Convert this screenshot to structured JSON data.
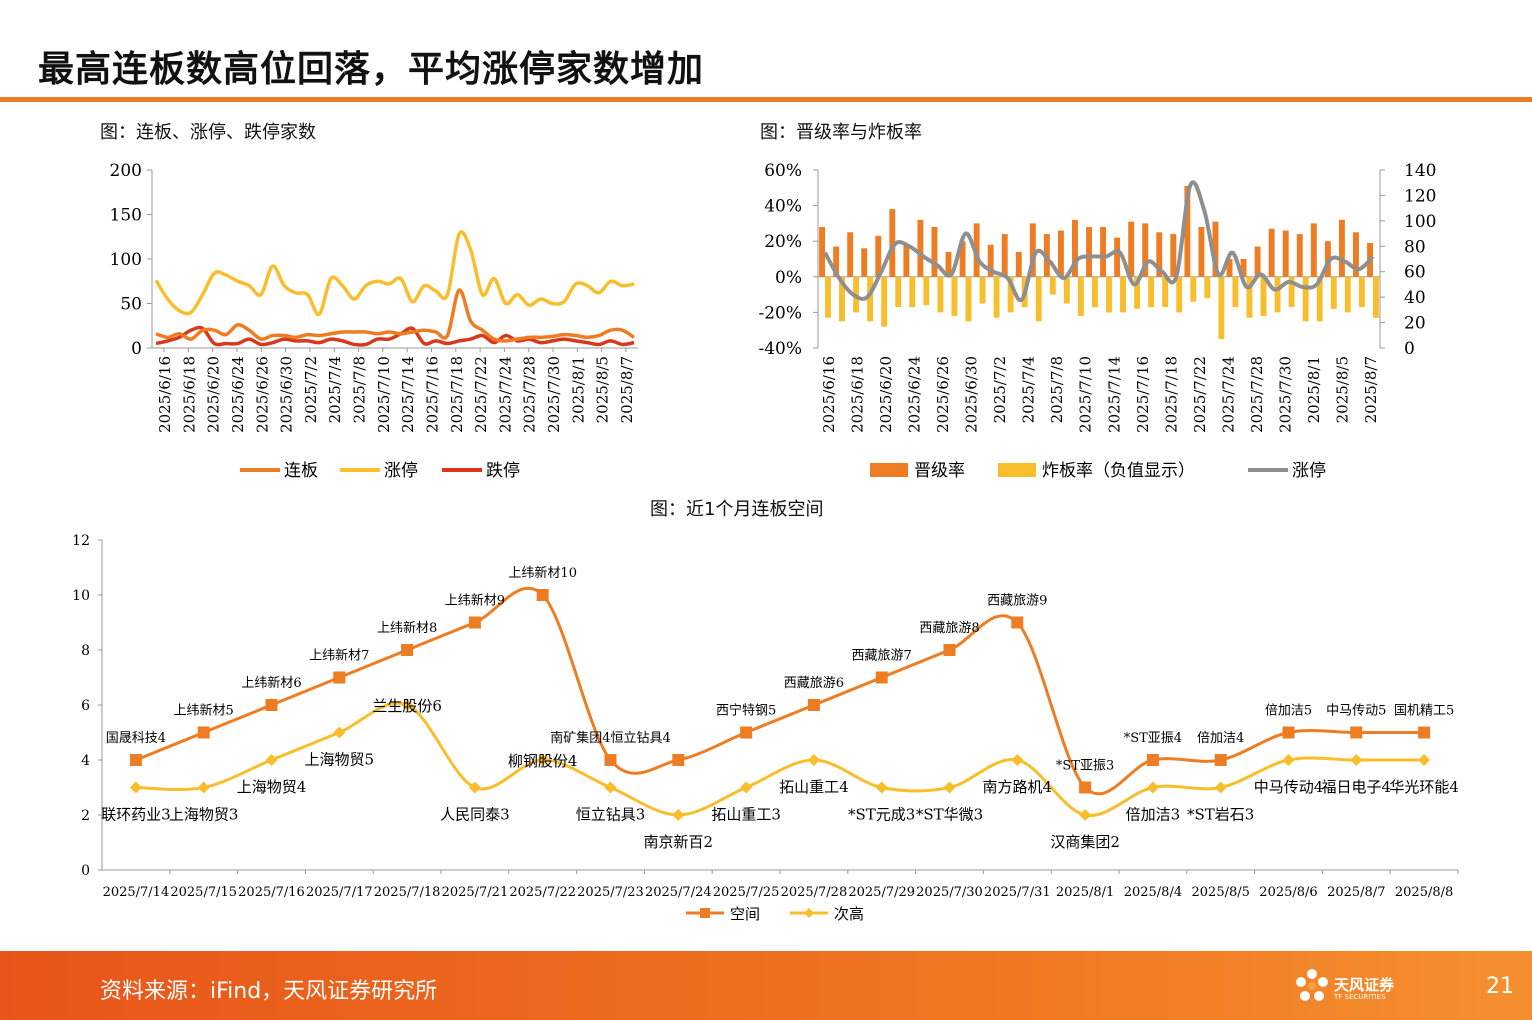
{
  "page": {
    "title": "最高连板数高位回落，平均涨停家数增加",
    "source": "资料来源：iFind，天风证券研究所",
    "page_number": "21",
    "logo_text": "天风证券",
    "logo_sub": "TF SECURITIES",
    "accent_color": "#ee7c22"
  },
  "chart_data": [
    {
      "id": "chart1",
      "type": "line",
      "title": "图：连板、涨停、跌停家数",
      "ylim": [
        0,
        200
      ],
      "yticks": [
        "0",
        "50",
        "100",
        "150",
        "200"
      ],
      "xticklabels": [
        "2025/6/16",
        "2025/6/18",
        "2025/6/20",
        "2025/6/24",
        "2025/6/26",
        "2025/6/30",
        "2025/7/2",
        "2025/7/4",
        "2025/7/8",
        "2025/7/10",
        "2025/7/14",
        "2025/7/16",
        "2025/7/18",
        "2025/7/22",
        "2025/7/24",
        "2025/7/28",
        "2025/7/30",
        "2025/8/1",
        "2025/8/5",
        "2025/8/7"
      ],
      "legend_position": "bottom",
      "series": [
        {
          "name": "连板",
          "color": "#ee7c22",
          "values": [
            16,
            12,
            16,
            10,
            20,
            20,
            15,
            26,
            20,
            10,
            14,
            14,
            12,
            15,
            14,
            16,
            18,
            18,
            18,
            16,
            18,
            16,
            18,
            20,
            18,
            14,
            65,
            30,
            20,
            10,
            8,
            10,
            12,
            12,
            13,
            15,
            14,
            12,
            14,
            20,
            20,
            12
          ]
        },
        {
          "name": "涨停",
          "color": "#f9be2c",
          "values": [
            76,
            55,
            42,
            40,
            60,
            84,
            82,
            75,
            70,
            60,
            92,
            70,
            62,
            60,
            38,
            78,
            70,
            55,
            70,
            75,
            72,
            78,
            52,
            70,
            64,
            60,
            128,
            110,
            60,
            78,
            50,
            60,
            48,
            55,
            50,
            52,
            72,
            70,
            62,
            75,
            70,
            72
          ]
        },
        {
          "name": "跌停",
          "color": "#d8391c",
          "values": [
            5,
            8,
            12,
            20,
            22,
            5,
            5,
            5,
            10,
            4,
            6,
            10,
            8,
            8,
            6,
            10,
            8,
            4,
            4,
            10,
            10,
            16,
            22,
            5,
            8,
            5,
            8,
            10,
            14,
            6,
            14,
            8,
            10,
            6,
            8,
            10,
            8,
            6,
            4,
            8,
            4,
            6
          ]
        }
      ]
    },
    {
      "id": "chart2",
      "type": "bar",
      "title": "图：晋级率与炸板率",
      "ylim_left": [
        -40,
        60
      ],
      "ylim_right": [
        0,
        140
      ],
      "yticks_left": [
        "-40%",
        "-20%",
        "0%",
        "20%",
        "40%",
        "60%"
      ],
      "yticks_right": [
        "0",
        "20",
        "40",
        "60",
        "80",
        "100",
        "120",
        "140"
      ],
      "xticklabels": [
        "2025/6/16",
        "2025/6/18",
        "2025/6/20",
        "2025/6/24",
        "2025/6/26",
        "2025/6/30",
        "2025/7/2",
        "2025/7/4",
        "2025/7/8",
        "2025/7/10",
        "2025/7/14",
        "2025/7/16",
        "2025/7/18",
        "2025/7/22",
        "2025/7/24",
        "2025/7/28",
        "2025/7/30",
        "2025/8/1",
        "2025/8/5",
        "2025/8/7"
      ],
      "legend_position": "bottom",
      "series": [
        {
          "name": "晋级率",
          "color": "#ee7c22",
          "values": [
            28,
            17,
            25,
            16,
            23,
            38,
            18,
            32,
            28,
            14,
            20,
            30,
            18,
            24,
            14,
            30,
            24,
            26,
            32,
            28,
            28,
            22,
            31,
            30,
            25,
            24,
            51,
            28,
            31,
            10,
            10,
            17,
            27,
            26,
            24,
            30,
            20,
            32,
            25,
            19
          ]
        },
        {
          "name": "炸板率（负值显示）",
          "color": "#f9be2c",
          "values": [
            -23,
            -25,
            -20,
            -25,
            -28,
            -17,
            -17,
            -16,
            -20,
            -22,
            -25,
            -15,
            -23,
            -20,
            -17,
            -25,
            -10,
            -15,
            -22,
            -17,
            -20,
            -20,
            -18,
            -17,
            -17,
            -20,
            -14,
            -12,
            -35,
            -17,
            -23,
            -22,
            -20,
            -17,
            -25,
            -25,
            -18,
            -20,
            -17,
            -23
          ]
        },
        {
          "name": "涨停",
          "color": "#8f8f8f",
          "values": [
            75,
            55,
            42,
            40,
            60,
            82,
            80,
            72,
            65,
            58,
            90,
            68,
            60,
            55,
            38,
            75,
            68,
            55,
            70,
            72,
            72,
            75,
            50,
            68,
            60,
            56,
            128,
            108,
            58,
            75,
            48,
            58,
            46,
            52,
            48,
            50,
            70,
            68,
            62,
            72
          ]
        }
      ]
    },
    {
      "id": "chart3",
      "type": "line",
      "title": "图：近1个月连板空间",
      "ylim": [
        0,
        12
      ],
      "yticks": [
        "0",
        "2",
        "4",
        "6",
        "8",
        "10",
        "12"
      ],
      "categories": [
        "2025/7/14",
        "2025/7/15",
        "2025/7/16",
        "2025/7/17",
        "2025/7/18",
        "2025/7/21",
        "2025/7/22",
        "2025/7/23",
        "2025/7/24",
        "2025/7/25",
        "2025/7/28",
        "2025/7/29",
        "2025/7/30",
        "2025/7/31",
        "2025/8/1",
        "2025/8/4",
        "2025/8/5",
        "2025/8/6",
        "2025/8/7",
        "2025/8/8"
      ],
      "legend_position": "bottom",
      "series": [
        {
          "name": "空间",
          "color": "#ee7c22",
          "values": [
            4,
            5,
            6,
            7,
            8,
            9,
            10,
            4,
            4,
            5,
            6,
            7,
            8,
            9,
            3,
            4,
            4,
            5,
            5,
            5
          ],
          "labels": [
            "国晟科技4",
            "上纬新材5",
            "上纬新材6",
            "上纬新材7",
            "上纬新材8",
            "上纬新材9",
            "上纬新材10",
            "南矿集团4恒立钻具4",
            "",
            "西宁特钢5",
            "西藏旅游6",
            "西藏旅游7",
            "西藏旅游8",
            "西藏旅游9",
            "*ST亚振3",
            "*ST亚振4",
            "倍加洁4",
            "倍加洁5",
            "中马传动5",
            "国机精工5"
          ]
        },
        {
          "name": "次高",
          "color": "#f9be2c",
          "values": [
            3,
            3,
            4,
            5,
            6,
            3,
            4,
            3,
            2,
            3,
            4,
            3,
            3,
            4,
            2,
            3,
            3,
            4,
            4,
            4
          ],
          "labels": [
            "联环药业3",
            "上海物贸3",
            "上海物贸4",
            "上海物贸5",
            "兰生股份6",
            "人民同泰3",
            "柳钢股份4",
            "恒立钻具3",
            "南京新百2",
            "拓山重工3",
            "拓山重工4",
            "*ST元成3",
            "*ST华微3",
            "南方路机4",
            "汉商集团2",
            "倍加洁3",
            "*ST岩石3",
            "中马传动4",
            "福日电子4",
            "华光环能4"
          ]
        }
      ]
    }
  ]
}
